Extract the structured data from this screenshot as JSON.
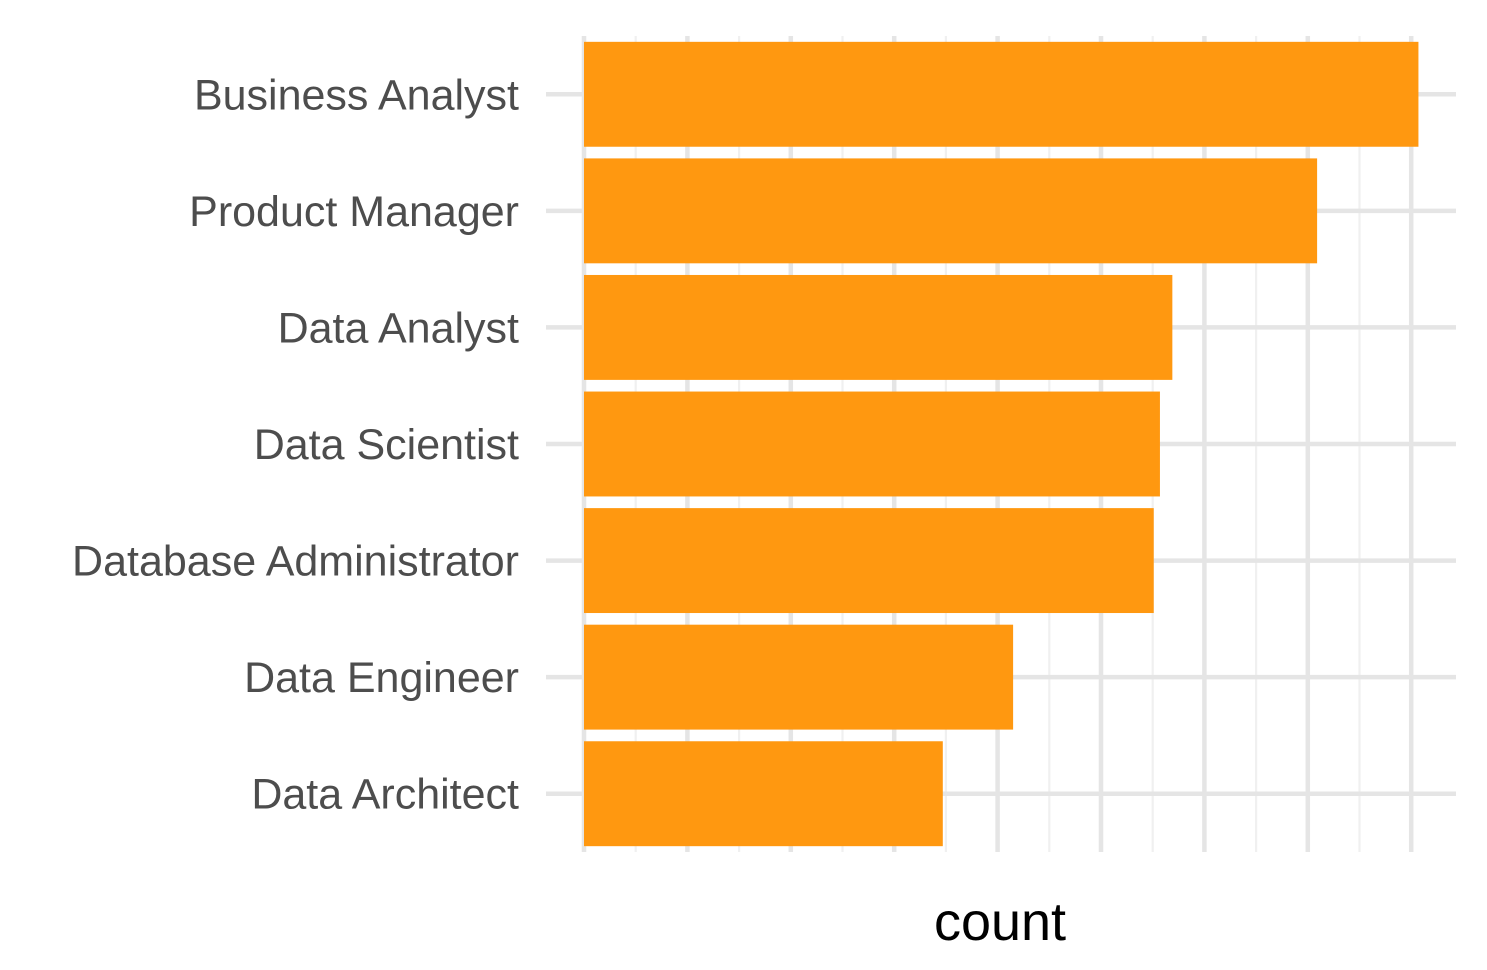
{
  "chart_data": {
    "type": "bar",
    "orientation": "horizontal",
    "title": "",
    "xlabel": "count",
    "ylabel": "",
    "categories": [
      "Business Analyst",
      "Product Manager",
      "Data Analyst",
      "Data Scientist",
      "Database Administrator",
      "Data Engineer",
      "Data Architect"
    ],
    "values": [
      8.07,
      7.09,
      5.69,
      5.57,
      5.51,
      4.15,
      3.47
    ],
    "xlim": [
      0,
      8.4
    ],
    "x_tick_labels_shown": false,
    "grid": true,
    "legend": "none",
    "colors": {
      "bar": "#FF9810",
      "grid_major": "#E5E5E5",
      "grid_minor": "#F0F0F0",
      "tick_text": "#4D4D4D",
      "axis_title": "#000000"
    }
  }
}
